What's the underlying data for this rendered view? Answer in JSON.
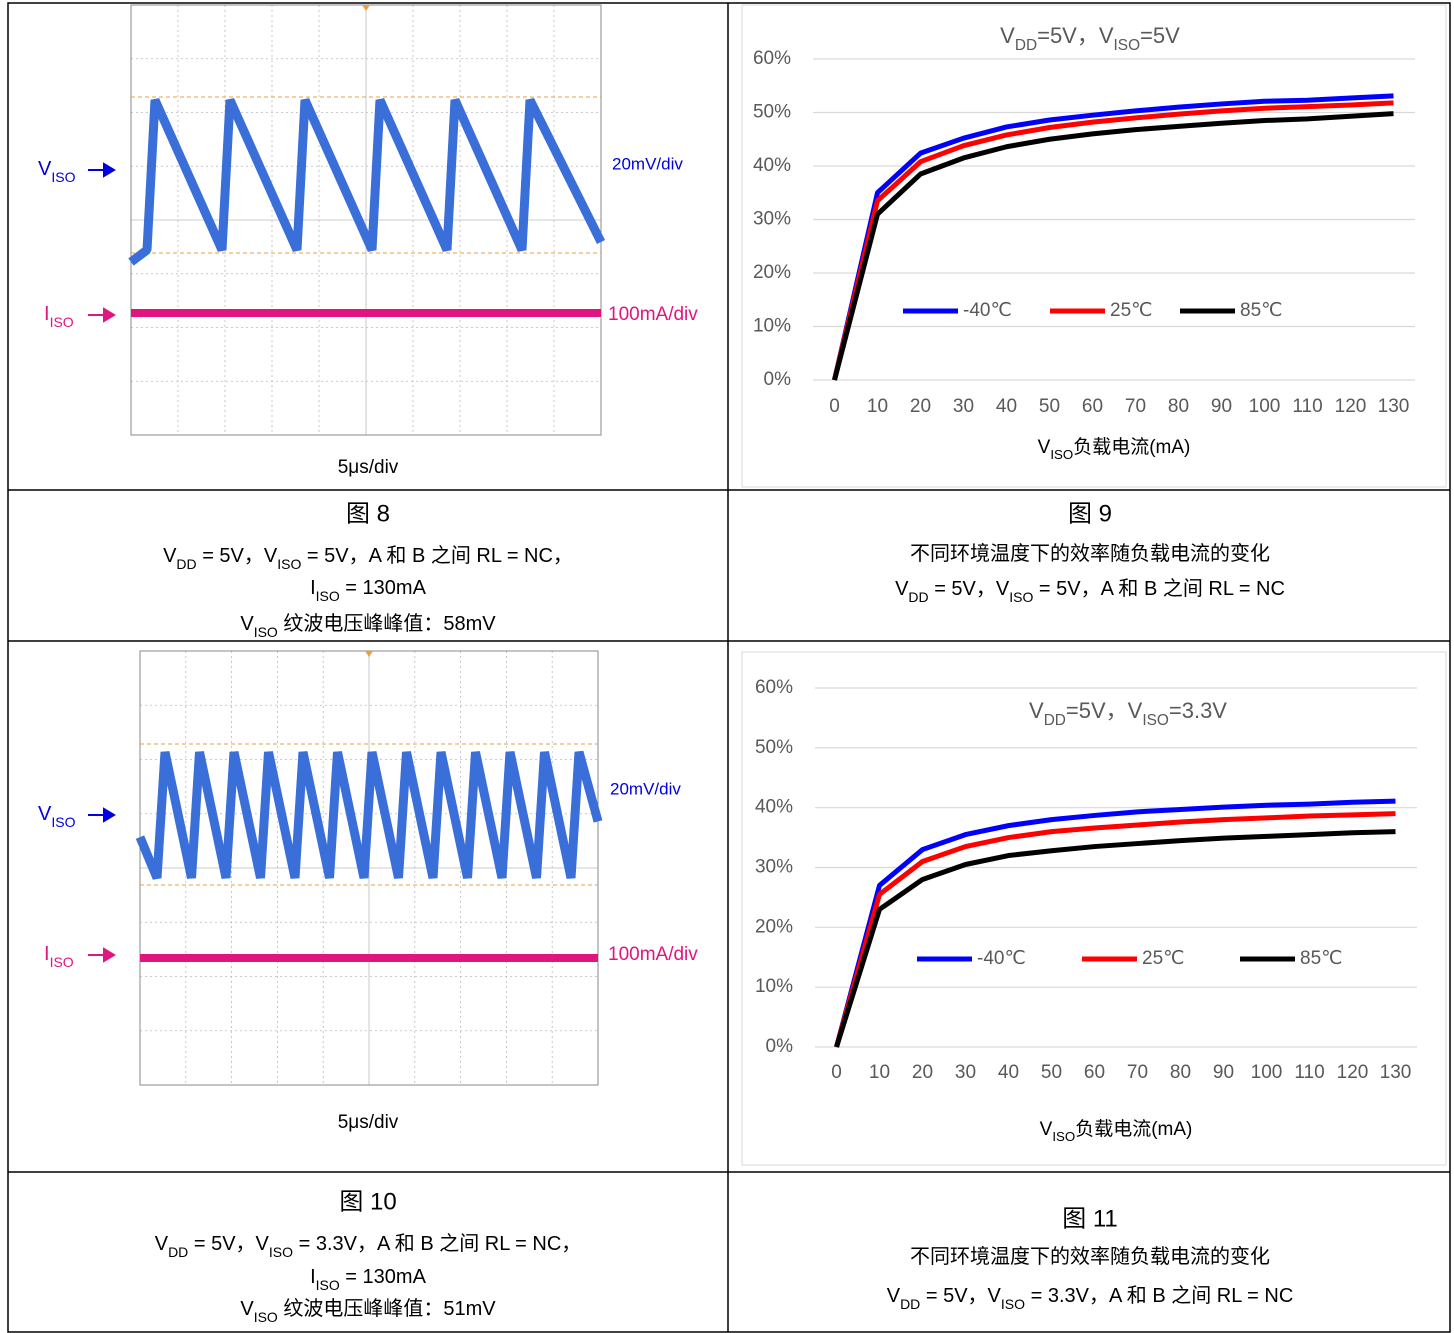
{
  "figures": [
    {
      "kind": "scope",
      "number": "图 8",
      "channels": [
        {
          "label": [
            "V",
            {
              "sub": "ISO"
            }
          ],
          "scale": "20mV/div"
        },
        {
          "label": [
            "I",
            {
              "sub": "ISO"
            }
          ],
          "scale": "100mA/div"
        }
      ],
      "timebase": "5μs/div",
      "caption": [
        [
          "V",
          {
            "sub": "DD"
          },
          " = 5V，V",
          {
            "sub": "ISO"
          },
          " = 5V，A 和 B 之间 RL = NC，"
        ],
        [
          "I",
          {
            "sub": "ISO"
          },
          " = 130mA"
        ],
        [
          "V",
          {
            "sub": "ISO"
          },
          " 纹波电压峰峰值：58mV"
        ]
      ]
    },
    {
      "kind": "chart",
      "number": "图 9",
      "caption": [
        [
          "不同环境温度下的效率随负载电流的变化"
        ],
        [
          "V",
          {
            "sub": "DD"
          },
          " = 5V，V",
          {
            "sub": "ISO"
          },
          " = 5V，A 和 B 之间 RL = NC"
        ]
      ]
    },
    {
      "kind": "scope",
      "number": "图 10",
      "channels": [
        {
          "label": [
            "V",
            {
              "sub": "ISO"
            }
          ],
          "scale": "20mV/div"
        },
        {
          "label": [
            "I",
            {
              "sub": "ISO"
            }
          ],
          "scale": "100mA/div"
        }
      ],
      "timebase": "5μs/div",
      "caption": [
        [
          "V",
          {
            "sub": "DD"
          },
          " = 5V，V",
          {
            "sub": "ISO"
          },
          " = 3.3V，A 和 B 之间 RL = NC，"
        ],
        [
          "I",
          {
            "sub": "ISO"
          },
          " = 130mA"
        ],
        [
          "V",
          {
            "sub": "ISO"
          },
          " 纹波电压峰峰值：51mV"
        ]
      ]
    },
    {
      "kind": "chart",
      "number": "图 11",
      "caption": [
        [
          "不同环境温度下的效率随负载电流的变化"
        ],
        [
          "V",
          {
            "sub": "DD"
          },
          " = 5V，V",
          {
            "sub": "ISO"
          },
          " = 3.3V，A 和 B 之间 RL = NC"
        ]
      ]
    }
  ],
  "chart_data": [
    {
      "type": "line",
      "title": [
        "V",
        {
          "sub": "DD"
        },
        "=5V，V",
        {
          "sub": "ISO"
        },
        "=5V"
      ],
      "x_label": [
        "V",
        {
          "sub": "ISO"
        },
        "负载电流(mA)"
      ],
      "categories": [
        "0",
        "10",
        "20",
        "30",
        "40",
        "50",
        "60",
        "70",
        "80",
        "90",
        "100",
        "110",
        "120",
        "130"
      ],
      "ylim": [
        0,
        60
      ],
      "yticks": [
        {
          "value": 0,
          "label": "0%"
        },
        {
          "value": 10,
          "label": "10%"
        },
        {
          "value": 20,
          "label": "20%"
        },
        {
          "value": 30,
          "label": "30%"
        },
        {
          "value": 40,
          "label": "40%"
        },
        {
          "value": 50,
          "label": "50%"
        },
        {
          "value": 60,
          "label": "60%"
        }
      ],
      "grid": true,
      "legend": "center",
      "series": [
        {
          "name": "-40℃",
          "color": "#0000ff",
          "values": [
            0,
            35,
            42.4,
            45.2,
            47.3,
            48.6,
            49.5,
            50.3,
            51.0,
            51.6,
            52.1,
            52.3,
            52.7,
            53.1
          ]
        },
        {
          "name": "25℃",
          "color": "#ff0000",
          "values": [
            0,
            33.5,
            40.8,
            43.8,
            45.8,
            47.2,
            48.2,
            49.0,
            49.7,
            50.3,
            50.8,
            51.1,
            51.4,
            51.8
          ]
        },
        {
          "name": "85℃",
          "color": "#000000",
          "values": [
            0,
            31,
            38.5,
            41.5,
            43.6,
            45.0,
            46.0,
            46.8,
            47.4,
            48.0,
            48.5,
            48.8,
            49.3,
            49.8
          ]
        }
      ]
    },
    {
      "type": "line",
      "title": [
        "V",
        {
          "sub": "DD"
        },
        "=5V，V",
        {
          "sub": "ISO"
        },
        "=3.3V"
      ],
      "x_label": [
        "V",
        {
          "sub": "ISO"
        },
        "负载电流(mA)"
      ],
      "categories": [
        "0",
        "10",
        "20",
        "30",
        "40",
        "50",
        "60",
        "70",
        "80",
        "90",
        "100",
        "110",
        "120",
        "130"
      ],
      "ylim": [
        0,
        60
      ],
      "yticks": [
        {
          "value": 0,
          "label": "0%"
        },
        {
          "value": 10,
          "label": "10%"
        },
        {
          "value": 20,
          "label": "20%"
        },
        {
          "value": 30,
          "label": "30%"
        },
        {
          "value": 40,
          "label": "40%"
        },
        {
          "value": 50,
          "label": "50%"
        },
        {
          "value": 60,
          "label": "60%"
        }
      ],
      "grid": true,
      "legend": "center",
      "series": [
        {
          "name": "-40℃",
          "color": "#0000ff",
          "values": [
            0,
            27,
            33,
            35.5,
            37,
            38,
            38.7,
            39.3,
            39.7,
            40.1,
            40.4,
            40.6,
            40.9,
            41.1
          ]
        },
        {
          "name": "25℃",
          "color": "#ff0000",
          "values": [
            0,
            25.5,
            31,
            33.5,
            35,
            36,
            36.6,
            37.1,
            37.6,
            38,
            38.3,
            38.6,
            38.8,
            39
          ]
        },
        {
          "name": "85℃",
          "color": "#000000",
          "values": [
            0,
            23,
            28,
            30.5,
            32,
            32.8,
            33.5,
            34,
            34.5,
            34.9,
            35.2,
            35.5,
            35.8,
            36
          ]
        }
      ]
    }
  ]
}
